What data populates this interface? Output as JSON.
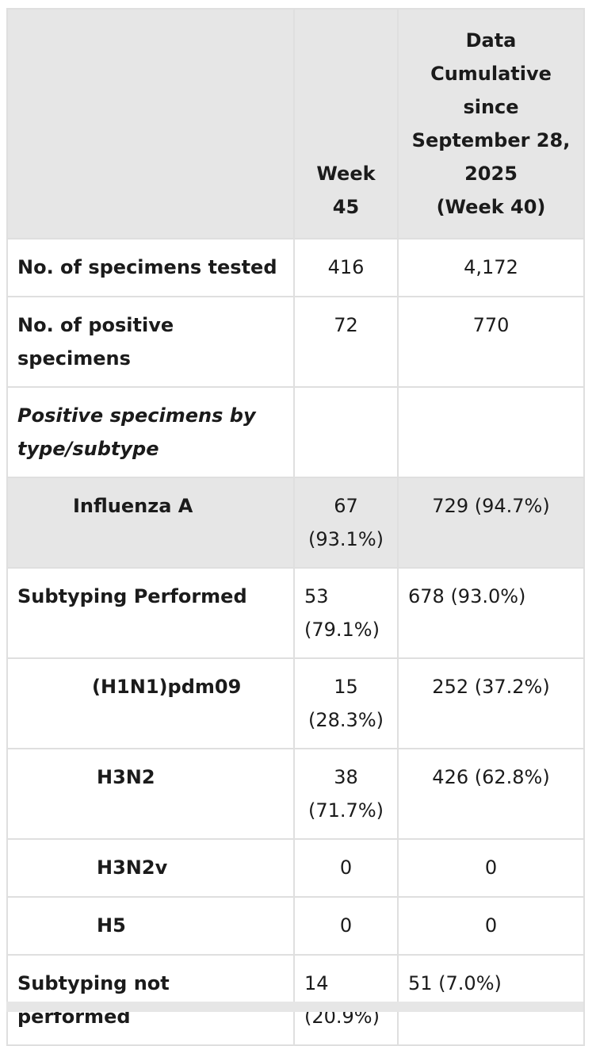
{
  "table": {
    "headers": {
      "col1": "",
      "col2_line1": "Week",
      "col2_line2": "45",
      "col3_lines": [
        "Data",
        "Cumulative",
        "since",
        "September 28,",
        "2025",
        "(Week 40)"
      ]
    },
    "rows": [
      {
        "label": "No. of specimens tested",
        "week": "416",
        "cumulative": "4,172"
      },
      {
        "label": "No. of positive specimens",
        "week": "72",
        "cumulative": "770"
      },
      {
        "label_line1": "Positive specimens by",
        "label_line2": "type/subtype",
        "week": "",
        "cumulative": ""
      },
      {
        "label": "Influenza A",
        "week_line1": "67",
        "week_line2": "(93.1%)",
        "cumulative": "729 (94.7%)"
      },
      {
        "label": "Subtyping Performed",
        "week_line1": "53",
        "week_line2": "(79.1%)",
        "cumulative": "678 (93.0%)"
      },
      {
        "label": "(H1N1)pdm09",
        "week_line1": "15",
        "week_line2": "(28.3%)",
        "cumulative": "252 (37.2%)"
      },
      {
        "label": "H3N2",
        "week_line1": "38",
        "week_line2": "(71.7%)",
        "cumulative": "426 (62.8%)"
      },
      {
        "label": "H3N2v",
        "week": "0",
        "cumulative": "0"
      },
      {
        "label": "H5",
        "week": "0",
        "cumulative": "0"
      },
      {
        "label": "Subtyping not performed",
        "week_line1": "14",
        "week_line2": "(20.9%)",
        "cumulative": "51 (7.0%)"
      }
    ]
  }
}
